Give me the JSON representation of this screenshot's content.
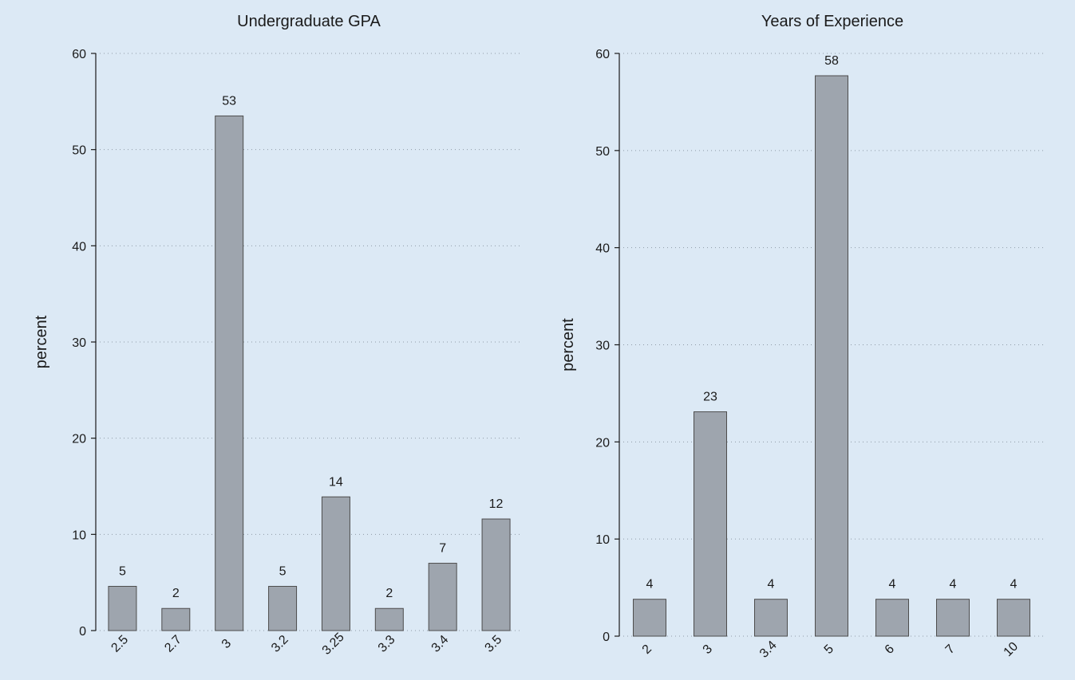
{
  "colors": {
    "background": "#dce9f5",
    "bar_fill": "#9ea5ae",
    "bar_stroke": "#4d4d4d",
    "axis": "#1a1a1a",
    "grid": "#8f9aa6"
  },
  "chart_data": [
    {
      "type": "bar",
      "title": "Undergraduate GPA",
      "xlabel": "",
      "ylabel": "percent",
      "categories": [
        "2.5",
        "2.7",
        "3",
        "3.2",
        "3.25",
        "3.3",
        "3.4",
        "3.5"
      ],
      "values": [
        4.6,
        2.3,
        53.5,
        4.6,
        13.9,
        2.3,
        7.0,
        11.6
      ],
      "data_labels": [
        "5",
        "2",
        "53",
        "5",
        "14",
        "2",
        "7",
        "12"
      ],
      "ylim": [
        0,
        60
      ],
      "yticks": [
        0,
        10,
        20,
        30,
        40,
        50,
        60
      ],
      "grid": true
    },
    {
      "type": "bar",
      "title": "Years of Experience",
      "xlabel": "",
      "ylabel": "percent",
      "categories": [
        "2",
        "3",
        "3.4",
        "5",
        "6",
        "7",
        "10"
      ],
      "values": [
        3.8,
        23.1,
        3.8,
        57.7,
        3.8,
        3.8,
        3.8
      ],
      "data_labels": [
        "4",
        "23",
        "4",
        "58",
        "4",
        "4",
        "4"
      ],
      "ylim": [
        0,
        60
      ],
      "yticks": [
        0,
        10,
        20,
        30,
        40,
        50,
        60
      ],
      "grid": true
    }
  ]
}
